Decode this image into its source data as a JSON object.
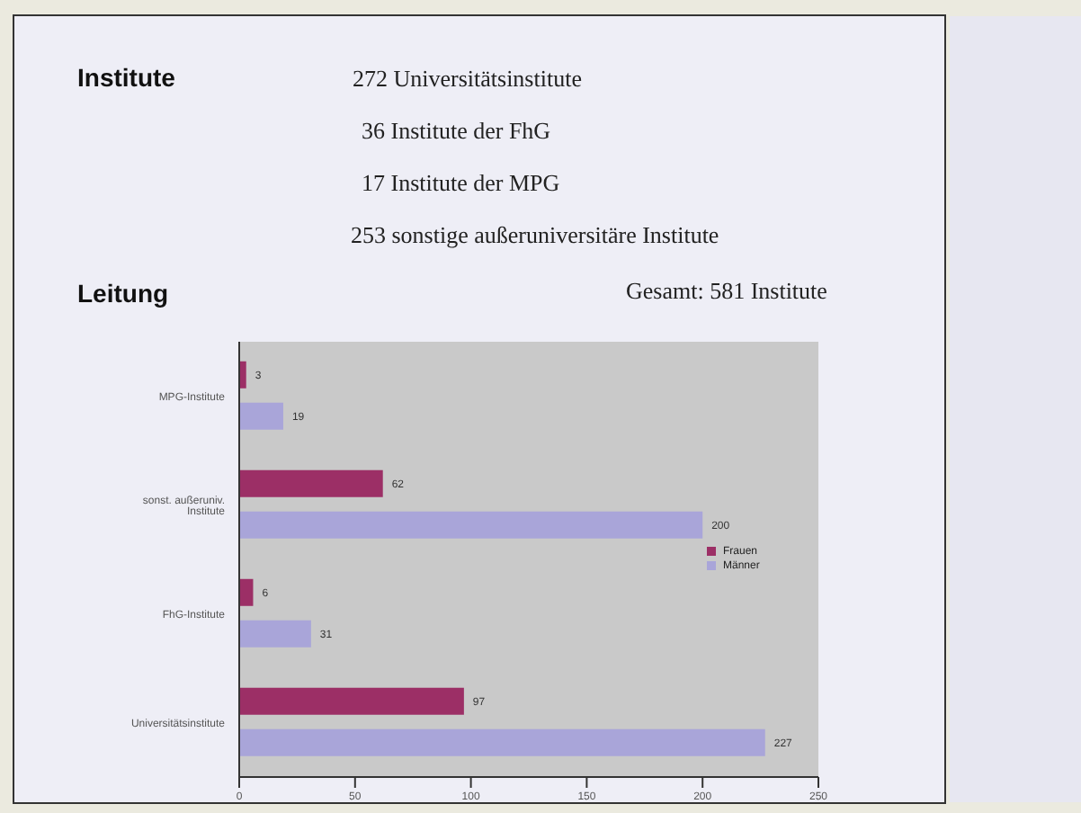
{
  "chart_data": {
    "type": "bar",
    "orientation": "horizontal",
    "title": "Institute",
    "subtitle": "Leitung",
    "annotations": [
      "272 Universitätsinstitute",
      "36 Institute der FhG",
      "17 Institute der MPG",
      "253 sonstige außeruniversitäre Institute",
      "Gesamt: 581 Institute"
    ],
    "categories": [
      "MPG-Institute",
      "sonst. außeruniv. Institute",
      "FhG-Institute",
      "Universitätsinstitute"
    ],
    "series": [
      {
        "name": "Frauen",
        "color": "#9c2f66",
        "values": [
          3,
          62,
          6,
          97
        ]
      },
      {
        "name": "Männer",
        "color": "#a9a5d9",
        "values": [
          19,
          200,
          31,
          227
        ]
      }
    ],
    "xlim": [
      0,
      250
    ],
    "xticks": [
      0,
      50,
      100,
      150,
      200,
      250
    ],
    "data_labels": true,
    "legend": "right"
  }
}
